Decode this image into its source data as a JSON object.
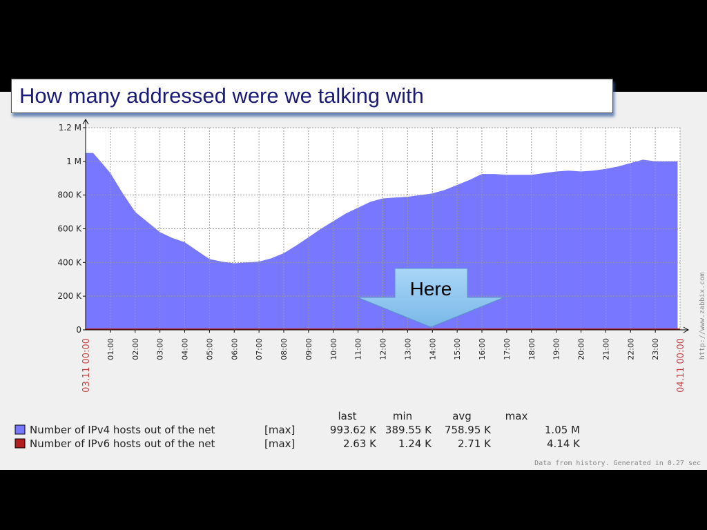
{
  "slide_title": "How many addressed were we talking with",
  "callout": {
    "label": "Here",
    "color": "#7ab8e8"
  },
  "chart_data": {
    "type": "area",
    "title": "",
    "xlabel": "",
    "ylabel": "",
    "ylim": [
      0,
      1200000
    ],
    "y_ticks": [
      {
        "value": 0,
        "label": "0"
      },
      {
        "value": 200000,
        "label": "200 K"
      },
      {
        "value": 400000,
        "label": "400 K"
      },
      {
        "value": 600000,
        "label": "600 K"
      },
      {
        "value": 800000,
        "label": "800 K"
      },
      {
        "value": 1000000,
        "label": "1 M"
      },
      {
        "value": 1200000,
        "label": "1.2 M"
      }
    ],
    "x_range_hours": [
      0,
      24
    ],
    "x_ticks": [
      "01:00",
      "02:00",
      "03:00",
      "04:00",
      "05:00",
      "06:00",
      "07:00",
      "08:00",
      "09:00",
      "10:00",
      "11:00",
      "12:00",
      "13:00",
      "14:00",
      "15:00",
      "16:00",
      "17:00",
      "18:00",
      "19:00",
      "20:00",
      "21:00",
      "22:00",
      "23:00"
    ],
    "x_start_label": "03.11 00:00",
    "x_end_label": "04.11 00:00",
    "grid": true,
    "series": [
      {
        "name": "Number of IPv4 hosts out of the net",
        "color": "#7777ff",
        "x_hours": [
          0,
          0.3,
          0.6,
          1,
          1.5,
          2,
          2.5,
          3,
          3.5,
          4,
          4.5,
          5,
          5.5,
          6,
          6.5,
          7,
          7.5,
          8,
          8.5,
          9,
          9.5,
          10,
          10.5,
          11,
          11.5,
          12,
          12.5,
          13,
          13.5,
          14,
          14.5,
          15,
          15.5,
          16,
          16.5,
          17,
          17.5,
          18,
          18.5,
          19,
          19.5,
          20,
          20.5,
          21,
          21.5,
          22,
          22.5,
          23,
          23.5,
          23.9
        ],
        "values": [
          1050000,
          1050000,
          1000000,
          930000,
          810000,
          700000,
          640000,
          580000,
          545000,
          520000,
          470000,
          420000,
          405000,
          395000,
          400000,
          405000,
          425000,
          455000,
          500000,
          550000,
          600000,
          645000,
          690000,
          725000,
          760000,
          780000,
          785000,
          790000,
          800000,
          810000,
          830000,
          860000,
          890000,
          925000,
          925000,
          920000,
          920000,
          920000,
          930000,
          940000,
          945000,
          940000,
          945000,
          955000,
          970000,
          990000,
          1010000,
          1000000,
          1000000,
          1000000
        ]
      },
      {
        "name": "Number of IPv6 hosts out of the net",
        "color": "#b41e1e",
        "x_hours": [
          0,
          24
        ],
        "values": [
          2630,
          2630
        ]
      }
    ],
    "legend": {
      "headers": [
        "last",
        "min",
        "avg",
        "max"
      ],
      "rows": [
        {
          "name": "Number of IPv4 hosts out of the net",
          "func": "[max]",
          "last": "993.62 K",
          "min": "389.55 K",
          "avg": "758.95 K",
          "max": "1.05 M",
          "color": "#7777ff"
        },
        {
          "name": "Number of IPv6 hosts out of the net",
          "func": "[max]",
          "last": "2.63 K",
          "min": "1.24 K",
          "avg": "2.71 K",
          "max": "4.14 K",
          "color": "#b41e1e"
        }
      ]
    },
    "footer_note": "Data from history. Generated in 0.27 sec",
    "side_watermark": "http://www.zabbix.com"
  }
}
